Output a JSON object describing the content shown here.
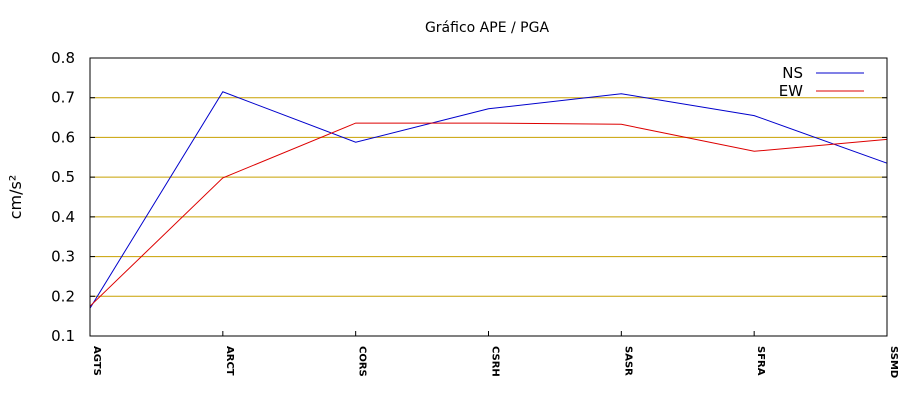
{
  "chart_data": {
    "type": "line",
    "title": "Gráfico  APE / PGA",
    "xlabel": "",
    "ylabel": "cm/s²",
    "categories": [
      "AGTS",
      "ARCT",
      "CORS",
      "CSRH",
      "SASR",
      "SFRA",
      "SSMD"
    ],
    "ylim": [
      0.1,
      0.8
    ],
    "yticks": [
      "0.1",
      "0.2",
      "0.3",
      "0.4",
      "0.5",
      "0.6",
      "0.7",
      "0.8"
    ],
    "grid": "horizontal",
    "grid_color": "#c8a000",
    "legend_position": "top-right",
    "series": [
      {
        "name": "NS",
        "color": "#0000cc",
        "values": [
          0.17,
          0.715,
          0.588,
          0.672,
          0.71,
          0.655,
          0.535
        ]
      },
      {
        "name": "EW",
        "color": "#dd0000",
        "values": [
          0.175,
          0.498,
          0.636,
          0.636,
          0.633,
          0.565,
          0.595
        ]
      }
    ]
  }
}
